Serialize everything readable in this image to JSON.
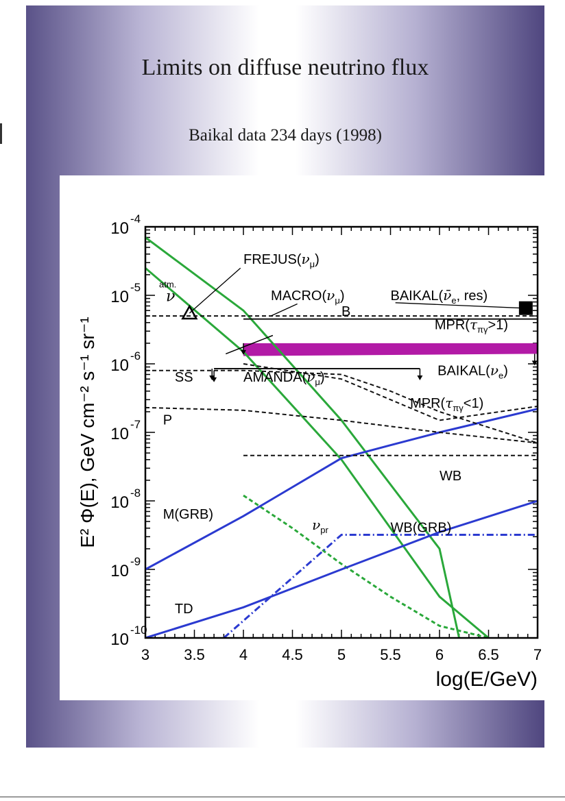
{
  "slide": {
    "title": "Limits on diffuse neutrino flux",
    "subtitle": "Baikal data 234 days (1998)"
  },
  "colors": {
    "green": "#2aa83a",
    "blue": "#2b3ad0",
    "magenta": "#b21aa6",
    "black": "#111111"
  },
  "chart_data": {
    "type": "line",
    "xlabel": "log(E/GeV)",
    "ylabel": "E² Φ(E), GeV cm⁻² s⁻¹ sr⁻¹",
    "xlim": [
      3,
      7
    ],
    "ylim": [
      1e-10,
      0.0001
    ],
    "yscale": "log",
    "x_ticks": [
      "3",
      "3.5",
      "4",
      "4.5",
      "5",
      "5.5",
      "6",
      "6.5",
      "7"
    ],
    "y_ticks": [
      {
        "value": 0.0001,
        "base": "10",
        "exp": "-4"
      },
      {
        "value": 1e-05,
        "base": "10",
        "exp": "-5"
      },
      {
        "value": 1e-06,
        "base": "10",
        "exp": "-6"
      },
      {
        "value": 1e-07,
        "base": "10",
        "exp": "-7"
      },
      {
        "value": 1e-08,
        "base": "10",
        "exp": "-8"
      },
      {
        "value": 1e-09,
        "base": "10",
        "exp": "-9"
      },
      {
        "value": 1e-10,
        "base": "10",
        "exp": "-10"
      }
    ],
    "series": [
      {
        "name": "atm ν (upper)",
        "color": "green",
        "style": "solid",
        "x": [
          3,
          4,
          5,
          6,
          6.2
        ],
        "y": [
          7e-05,
          6e-06,
          1.5e-07,
          2e-09,
          1e-10
        ]
      },
      {
        "name": "atm ν (lower)",
        "color": "green",
        "style": "solid",
        "x": [
          3,
          4,
          5,
          6,
          6.5
        ],
        "y": [
          2.5e-05,
          1.5e-06,
          4e-08,
          4e-10,
          1e-10
        ]
      },
      {
        "name": "ν_pr",
        "color": "green",
        "style": "dashed",
        "x": [
          4,
          4.5,
          5,
          5.5,
          6,
          6.5
        ],
        "y": [
          1.2e-08,
          4e-09,
          1.2e-09,
          4e-10,
          1.5e-10,
          1e-10
        ]
      },
      {
        "name": "M(GRB)",
        "color": "blue",
        "style": "solid",
        "x": [
          3,
          4,
          5,
          5.5,
          6,
          7
        ],
        "y": [
          1e-09,
          6e-09,
          4.2e-08,
          6.5e-08,
          1e-07,
          2.2e-07
        ]
      },
      {
        "name": "TD",
        "color": "blue",
        "style": "solid",
        "x": [
          3,
          4,
          5,
          6,
          7
        ],
        "y": [
          1e-10,
          2.8e-10,
          1e-09,
          3.5e-09,
          1e-08
        ]
      },
      {
        "name": "WB(GRB)",
        "color": "blue",
        "style": "dashdot",
        "x": [
          3.8,
          5,
          7
        ],
        "y": [
          1e-10,
          3.2e-09,
          3.2e-09
        ]
      },
      {
        "name": "B",
        "color": "black",
        "style": "dashed",
        "x": [
          3,
          5,
          7
        ],
        "y": [
          5e-06,
          5e-06,
          5e-06
        ]
      },
      {
        "name": "SS",
        "color": "black",
        "style": "dashed",
        "x": [
          3,
          4,
          5,
          5.5,
          6,
          7
        ],
        "y": [
          8e-07,
          8e-07,
          7e-07,
          4e-07,
          2e-07,
          7e-08
        ]
      },
      {
        "name": "P",
        "color": "black",
        "style": "dashed",
        "x": [
          3,
          4,
          5,
          6,
          7
        ],
        "y": [
          2.3e-07,
          2.1e-07,
          1.5e-07,
          1e-07,
          7e-08
        ]
      },
      {
        "name": "MPR(τ_πγ<1)",
        "color": "black",
        "style": "dashed",
        "x": [
          4,
          5,
          6,
          7
        ],
        "y": [
          1e-06,
          6e-07,
          1.5e-07,
          2.4e-07
        ]
      },
      {
        "name": "WB",
        "color": "black",
        "style": "dashed",
        "x": [
          4,
          7
        ],
        "y": [
          4.6e-08,
          4.6e-08
        ]
      },
      {
        "name": "MPR(τ_πγ>1)",
        "color": "black",
        "style": "solid",
        "x": [
          4,
          7
        ],
        "y": [
          4.5e-06,
          4.5e-06
        ]
      },
      {
        "name": "AMANDA(ν_μ)",
        "color": "black",
        "style": "solid",
        "x": [
          3.7,
          5.8
        ],
        "y": [
          8.5e-07,
          8.5e-07
        ]
      }
    ],
    "band": {
      "name": "BAIKAL(ν_e)",
      "color": "magenta",
      "x": [
        4,
        7
      ],
      "y_low": [
        1.3e-06,
        1.4e-06
      ],
      "y_high": [
        2e-06,
        2e-06
      ]
    },
    "markers": [
      {
        "name": "FREJUS(ν_μ)",
        "shape": "triangle",
        "x": 3.45,
        "y": 5.5e-06
      },
      {
        "name": "BAIKAL(ν̄_e, res)",
        "shape": "square",
        "x": 6.88,
        "y": 6.5e-06
      }
    ],
    "labels": [
      {
        "id": "frejus",
        "main": "FREJUS(",
        "greek": "ν",
        "sub": "μ",
        "tail": ")",
        "x": 4.0,
        "y": 2.9e-05
      },
      {
        "id": "macro",
        "main": "MACRO(",
        "greek": "ν",
        "sub": "μ",
        "tail": ")",
        "x": 4.28,
        "y": 8.5e-06
      },
      {
        "id": "baikal-res",
        "main": "BAIKAL(",
        "greek": "ν̄",
        "sub": "e",
        "tail": ", res)",
        "x": 5.5,
        "y": 8.5e-06
      },
      {
        "id": "b",
        "main": "B",
        "x": 5.0,
        "y": 5e-06
      },
      {
        "id": "mpr-gt",
        "main": "MPR(",
        "greek": "τ",
        "sub": "πγ",
        "tail": ">1)",
        "x": 5.95,
        "y": 3.2e-06
      },
      {
        "id": "baikal-nue",
        "main": "BAIKAL(",
        "greek": "ν",
        "sub": "e",
        "tail": ")",
        "x": 5.98,
        "y": 6.8e-07
      },
      {
        "id": "ss",
        "main": "SS",
        "x": 3.3,
        "y": 5.5e-07
      },
      {
        "id": "amanda",
        "main": "AMANDA(",
        "greek": "ν",
        "sub": "μ",
        "tail": ")",
        "x": 4.0,
        "y": 5.5e-07
      },
      {
        "id": "mpr-lt",
        "main": "MPR(",
        "greek": "τ",
        "sub": "πγ",
        "tail": "<1)",
        "x": 5.7,
        "y": 2.3e-07
      },
      {
        "id": "p",
        "main": "P",
        "x": 3.18,
        "y": 1.3e-07
      },
      {
        "id": "wb",
        "main": "WB",
        "x": 6.0,
        "y": 2e-08
      },
      {
        "id": "mgrb",
        "main": "M(GRB)",
        "x": 3.18,
        "y": 5.5e-09
      },
      {
        "id": "vpr",
        "greek": "ν",
        "sub": "pr",
        "x": 4.7,
        "y": 3.8e-09
      },
      {
        "id": "wbgrb",
        "main": "WB(GRB)",
        "x": 5.5,
        "y": 3.5e-09
      },
      {
        "id": "td",
        "main": "TD",
        "x": 3.3,
        "y": 2.3e-10
      },
      {
        "id": "atm",
        "main": "atm.",
        "greek": "ν",
        "x": 3.14,
        "y": 1.3e-05
      }
    ]
  }
}
